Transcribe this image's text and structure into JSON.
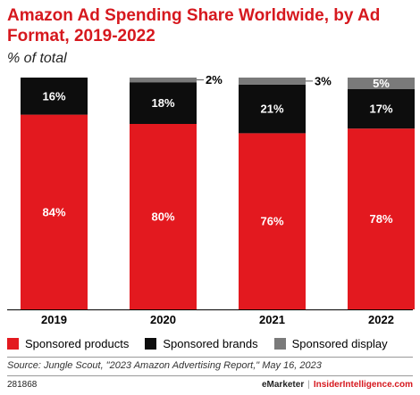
{
  "header": {
    "title": "Amazon Ad Spending Share Worldwide, by Ad Format, 2019-2022",
    "subtitle": "% of total"
  },
  "colors": {
    "sponsored_products": "#e3191f",
    "sponsored_brands": "#0d0d0d",
    "sponsored_display": "#7a7a7a",
    "accent": "#d6181e"
  },
  "chart_data": {
    "type": "bar",
    "stacked": true,
    "categories": [
      "2019",
      "2020",
      "2021",
      "2022"
    ],
    "series": [
      {
        "name": "Sponsored products",
        "values": [
          84,
          80,
          76,
          78
        ],
        "labels": [
          "84%",
          "80%",
          "76%",
          "78%"
        ],
        "color": "#e3191f"
      },
      {
        "name": "Sponsored brands",
        "values": [
          16,
          18,
          21,
          17
        ],
        "labels": [
          "16%",
          "18%",
          "21%",
          "17%"
        ],
        "color": "#0d0d0d"
      },
      {
        "name": "Sponsored display",
        "values": [
          0,
          2,
          3,
          5
        ],
        "labels": [
          "",
          "2%",
          "3%",
          "5%"
        ],
        "color": "#7a7a7a"
      }
    ],
    "ylim": [
      0,
      100
    ],
    "grid": false,
    "legend_position": "bottom"
  },
  "legend": {
    "items": [
      {
        "label": "Sponsored products",
        "color": "#e3191f"
      },
      {
        "label": "Sponsored brands",
        "color": "#0d0d0d"
      },
      {
        "label": "Sponsored display",
        "color": "#7a7a7a"
      }
    ]
  },
  "footer": {
    "source": "Source: Jungle Scout, \"2023 Amazon Advertising Report,\" May 16, 2023",
    "id": "281868",
    "brand": "eMarketer",
    "separator": "|",
    "site": "InsiderIntelligence.com"
  }
}
